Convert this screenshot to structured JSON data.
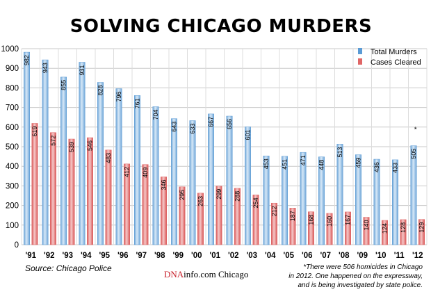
{
  "chart_data": {
    "type": "bar",
    "title": "SOLVING CHICAGO MURDERS",
    "categories": [
      "'91",
      "'92",
      "'93",
      "'94",
      "'95",
      "'96",
      "'97",
      "'98",
      "'99",
      "'00",
      "'01",
      "'02",
      "'03",
      "'04",
      "'05",
      "'06",
      "'07",
      "'08",
      "'09",
      "'10",
      "'11",
      "'12"
    ],
    "series": [
      {
        "name": "Total Murders",
        "color": "#5b9bd5",
        "values": [
          982,
          943,
          855,
          931,
          828,
          796,
          761,
          704,
          643,
          633,
          667,
          656,
          601,
          453,
          451,
          471,
          448,
          513,
          459,
          436,
          433,
          505
        ]
      },
      {
        "name": "Cases Cleared",
        "color": "#e06666",
        "values": [
          619,
          572,
          539,
          546,
          483,
          412,
          409,
          346,
          295,
          263,
          299,
          288,
          254,
          212,
          187,
          168,
          160,
          167,
          140,
          124,
          128,
          129
        ]
      }
    ],
    "yticks": [
      0,
      100,
      200,
      300,
      400,
      500,
      600,
      700,
      800,
      900,
      1000
    ],
    "ylim": [
      0,
      1000
    ],
    "grid": true,
    "legend_position": "top-right",
    "annotation_marker": "*"
  },
  "source": "Source: Chicago Police",
  "brand": {
    "dna": "DNA",
    "rest": "info.com Chicago"
  },
  "footnote": [
    "*There were 506 homicides in Chicago",
    "in 2012. One happened on the expressway,",
    "and is being investigated by state police."
  ]
}
